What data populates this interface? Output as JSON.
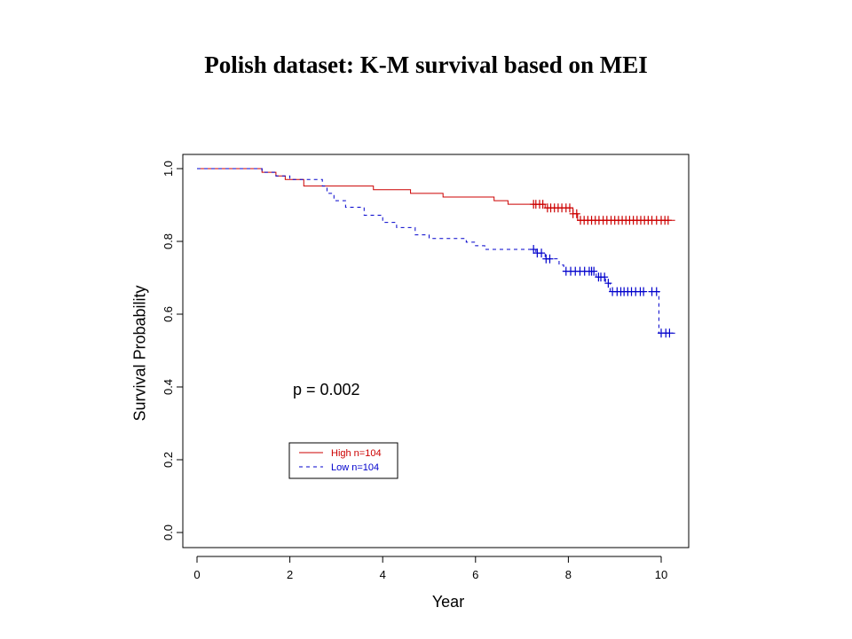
{
  "chart_data": {
    "type": "line",
    "title": "Polish dataset: K-M survival based on MEI",
    "xlabel": "Year",
    "ylabel": "Survival Probability",
    "xlim": [
      0,
      10.5
    ],
    "ylim": [
      0,
      1.0
    ],
    "x_ticks": [
      "0",
      "2",
      "4",
      "6",
      "8",
      "10"
    ],
    "y_ticks": [
      "0.0",
      "0.2",
      "0.4",
      "0.6",
      "0.8",
      "1.0"
    ],
    "annotation": "p = 0.002",
    "legend_position": "lower-center",
    "series": [
      {
        "name": "High n=104",
        "color": "#cc0000",
        "dash": "solid",
        "steps": [
          [
            0,
            1.0
          ],
          [
            1.4,
            0.99
          ],
          [
            1.7,
            0.98
          ],
          [
            1.9,
            0.97
          ],
          [
            2.3,
            0.952
          ],
          [
            3.8,
            0.942
          ],
          [
            4.6,
            0.932
          ],
          [
            5.3,
            0.922
          ],
          [
            6.4,
            0.912
          ],
          [
            6.7,
            0.902
          ],
          [
            7.5,
            0.892
          ],
          [
            8.1,
            0.876
          ],
          [
            8.2,
            0.858
          ],
          [
            10.3,
            0.858
          ]
        ],
        "censors": [
          7.25,
          7.3,
          7.38,
          7.45,
          7.55,
          7.62,
          7.7,
          7.78,
          7.86,
          7.95,
          8.03,
          8.1,
          8.18,
          8.26,
          8.34,
          8.42,
          8.5,
          8.58,
          8.66,
          8.75,
          8.83,
          8.92,
          9.0,
          9.08,
          9.16,
          9.24,
          9.32,
          9.4,
          9.48,
          9.56,
          9.64,
          9.72,
          9.8,
          9.9,
          10.0,
          10.08,
          10.15
        ]
      },
      {
        "name": "Low n=104",
        "color": "#0000cc",
        "dash": "dashed",
        "steps": [
          [
            0,
            1.0
          ],
          [
            1.4,
            0.99
          ],
          [
            1.7,
            0.98
          ],
          [
            2.0,
            0.97
          ],
          [
            2.7,
            0.952
          ],
          [
            2.8,
            0.932
          ],
          [
            2.95,
            0.912
          ],
          [
            3.2,
            0.894
          ],
          [
            3.6,
            0.872
          ],
          [
            4.0,
            0.852
          ],
          [
            4.3,
            0.838
          ],
          [
            4.7,
            0.818
          ],
          [
            5.0,
            0.808
          ],
          [
            5.8,
            0.798
          ],
          [
            6.0,
            0.788
          ],
          [
            6.2,
            0.778
          ],
          [
            7.3,
            0.768
          ],
          [
            7.5,
            0.752
          ],
          [
            7.8,
            0.735
          ],
          [
            7.9,
            0.718
          ],
          [
            8.6,
            0.702
          ],
          [
            8.8,
            0.685
          ],
          [
            8.9,
            0.662
          ],
          [
            9.95,
            0.548
          ],
          [
            10.3,
            0.548
          ]
        ],
        "censors": [
          7.25,
          7.33,
          7.42,
          7.52,
          7.6,
          7.95,
          8.05,
          8.15,
          8.25,
          8.35,
          8.45,
          8.5,
          8.55,
          8.65,
          8.7,
          8.78,
          8.86,
          8.95,
          9.05,
          9.13,
          9.2,
          9.28,
          9.36,
          9.45,
          9.55,
          9.62,
          9.8,
          9.9,
          10.0,
          10.1,
          10.18
        ]
      }
    ]
  }
}
